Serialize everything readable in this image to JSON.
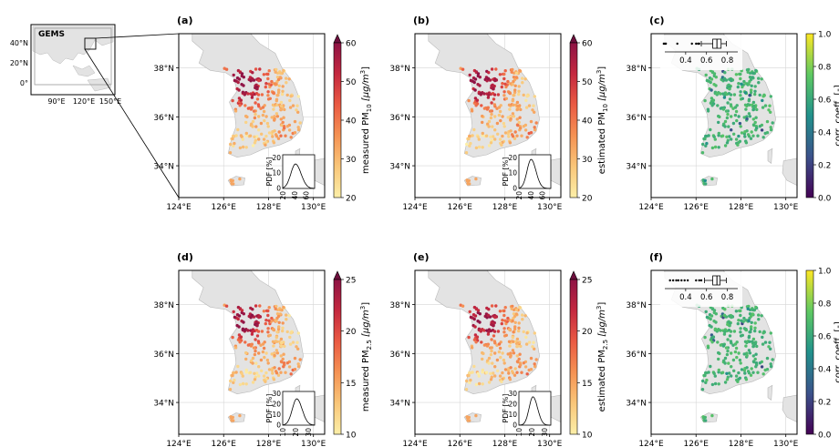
{
  "colors": {
    "land": "#e3e3e3",
    "land_edge": "#b9b9b9",
    "grid": "#d6d6d6",
    "inset_box": "#000000",
    "gems_domain": "#9a9a9a",
    "pm_cmap": [
      "#fcefa8",
      "#f9c679",
      "#f59253",
      "#ea5a43",
      "#c4283f",
      "#8e1345"
    ],
    "pm_overflow": "#6e0f3d",
    "corr_cmap": [
      "#440154",
      "#3b528b",
      "#21918c",
      "#5ec962",
      "#fde725"
    ]
  },
  "overview": {
    "gems_label": "GEMS",
    "lat_ticks": [
      "40°N",
      "20°N",
      "0°"
    ],
    "lon_ticks": [
      "90°E",
      "120°E",
      "150°E"
    ]
  },
  "map_axes": {
    "lat_ticks": [
      "38°N",
      "36°N",
      "34°N"
    ],
    "lon_ticks": [
      "124°E",
      "126°E",
      "128°E",
      "130°E"
    ]
  },
  "panels": [
    {
      "id": "a",
      "label": "(a)",
      "type": "pm",
      "colorbar": {
        "ticks": [
          "20",
          "30",
          "40",
          "50",
          "60"
        ],
        "label_prefix": "measured PM",
        "label_sub": "10",
        "label_unit": " [μg/m",
        "label_sup": "3",
        "label_close": "]",
        "min": 20,
        "max": 60
      },
      "inset": {
        "ylabel": "PDF [%]",
        "yticks": [
          "0",
          "10",
          "20"
        ],
        "xticks": [
          "20",
          "40",
          "60"
        ],
        "xmin": 15,
        "xmax": 70,
        "ymax": 22,
        "peak": 37,
        "peak_value": 16,
        "width": 8
      }
    },
    {
      "id": "b",
      "label": "(b)",
      "type": "pm",
      "colorbar": {
        "ticks": [
          "20",
          "30",
          "40",
          "50",
          "60"
        ],
        "label_prefix": "estimated PM",
        "label_sub": "10",
        "label_unit": " [μg/m",
        "label_sup": "3",
        "label_close": "]",
        "min": 20,
        "max": 60
      },
      "inset": {
        "ylabel": "PDF [%]",
        "yticks": [
          "0",
          "10",
          "20"
        ],
        "xticks": [
          "20",
          "40",
          "60"
        ],
        "xmin": 15,
        "xmax": 70,
        "ymax": 22,
        "peak": 36,
        "peak_value": 19,
        "width": 7
      }
    },
    {
      "id": "c",
      "label": "(c)",
      "type": "corr",
      "colorbar": {
        "ticks": [
          "0.0",
          "0.2",
          "0.4",
          "0.6",
          "0.8",
          "1.0"
        ],
        "label": "corr. coeff. [-]",
        "min": 0,
        "max": 1
      },
      "boxplot": {
        "ticks": [
          "0.4",
          "0.6",
          "0.8"
        ],
        "axis_min": 0.2,
        "axis_max": 0.9,
        "whisker_low": 0.55,
        "q1": 0.66,
        "median": 0.7,
        "q3": 0.74,
        "whisker_high": 0.79,
        "outliers": [
          0.19,
          0.2,
          0.21,
          0.32,
          0.46,
          0.5,
          0.52,
          0.53
        ]
      }
    },
    {
      "id": "d",
      "label": "(d)",
      "type": "pm",
      "colorbar": {
        "ticks": [
          "10",
          "15",
          "20",
          "25"
        ],
        "label_prefix": "measured PM",
        "label_sub": "2.5",
        "label_unit": " [μg/m",
        "label_sup": "3",
        "label_close": "]",
        "min": 10,
        "max": 25
      },
      "inset": {
        "ylabel": "PDF [%]",
        "yticks": [
          "0",
          "10",
          "20",
          "30"
        ],
        "xticks": [
          "10",
          "20",
          "30"
        ],
        "xmin": 8,
        "xmax": 33,
        "ymax": 32,
        "peak": 19,
        "peak_value": 25,
        "width": 3.5
      }
    },
    {
      "id": "e",
      "label": "(e)",
      "type": "pm",
      "colorbar": {
        "ticks": [
          "10",
          "15",
          "20",
          "25"
        ],
        "label_prefix": "estimated PM",
        "label_sub": "2.5",
        "label_unit": " [μg/m",
        "label_sup": "3",
        "label_close": "]",
        "min": 10,
        "max": 25
      },
      "inset": {
        "ylabel": "PDF [%]",
        "yticks": [
          "0",
          "10",
          "20",
          "30"
        ],
        "xticks": [
          "10",
          "20",
          "30"
        ],
        "xmin": 8,
        "xmax": 33,
        "ymax": 32,
        "peak": 19,
        "peak_value": 27,
        "width": 3
      }
    },
    {
      "id": "f",
      "label": "(f)",
      "type": "corr",
      "colorbar": {
        "ticks": [
          "0.0",
          "0.2",
          "0.4",
          "0.6",
          "0.8",
          "1.0"
        ],
        "label": "corr. coeff. [-]",
        "min": 0,
        "max": 1
      },
      "boxplot": {
        "ticks": [
          "0.4",
          "0.6",
          "0.8"
        ],
        "axis_min": 0.2,
        "axis_max": 0.9,
        "whisker_low": 0.58,
        "q1": 0.66,
        "median": 0.7,
        "q3": 0.73,
        "whisker_high": 0.79,
        "outliers": [
          0.25,
          0.28,
          0.31,
          0.33,
          0.36,
          0.39,
          0.42,
          0.5,
          0.53,
          0.55
        ]
      }
    }
  ],
  "chart_data": {
    "type": "scatter",
    "description_of_panels": [
      "a",
      "b",
      "c",
      "d",
      "e",
      "f"
    ],
    "map_extent": {
      "lon": [
        124,
        130.5
      ],
      "lat": [
        32.7,
        39.4
      ]
    },
    "stations_sample_note": "",
    "series": [
      {
        "panel": "a",
        "values_range": [
          20,
          60
        ]
      },
      {
        "panel": "b",
        "values_range": [
          20,
          60
        ]
      },
      {
        "panel": "c",
        "values_range": [
          0,
          1
        ]
      },
      {
        "panel": "d",
        "values_range": [
          10,
          25
        ]
      },
      {
        "panel": "e",
        "values_range": [
          10,
          25
        ]
      },
      {
        "panel": "f",
        "values_range": [
          0,
          1
        ]
      }
    ]
  }
}
